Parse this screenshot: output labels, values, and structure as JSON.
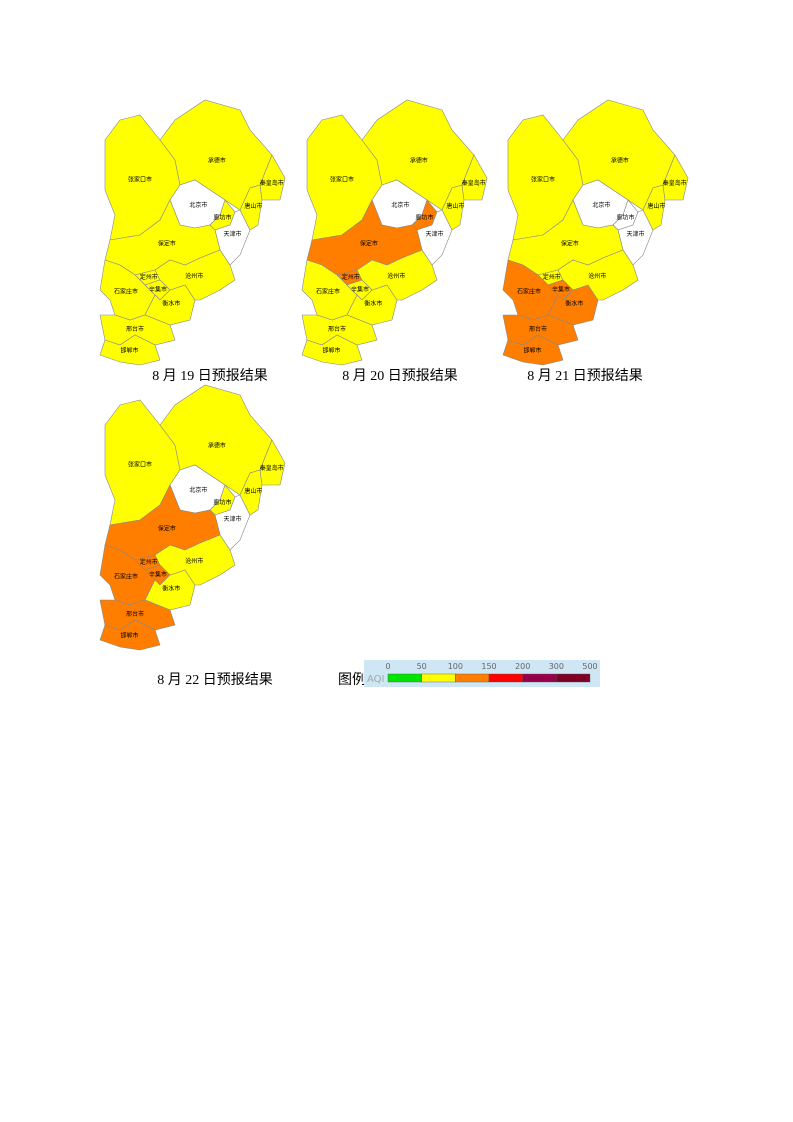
{
  "regions": [
    "张家口市",
    "承德市",
    "北京市",
    "廊坊市",
    "天津市",
    "唐山市",
    "秦皇岛市",
    "保定市",
    "定州市",
    "石家庄市",
    "辛集市",
    "衡水市",
    "沧州市",
    "邢台市",
    "邯郸市"
  ],
  "maps": [
    {
      "caption": "8 月 19 日预报结果",
      "fills": [
        "#ffff00",
        "#ffff00",
        "#ffffff",
        "#ffff00",
        "#ffffff",
        "#ffff00",
        "#ffff00",
        "#ffff00",
        "#ffff00",
        "#ffff00",
        "#ffff00",
        "#ffff00",
        "#ffff00",
        "#ffff00",
        "#ffff00"
      ]
    },
    {
      "caption": "8 月 20 日预报结果",
      "fills": [
        "#ffff00",
        "#ffff00",
        "#ffffff",
        "#ff7e00",
        "#ffffff",
        "#ffff00",
        "#ffff00",
        "#ff7e00",
        "#ff7e00",
        "#ffff00",
        "#ffff00",
        "#ffff00",
        "#ffff00",
        "#ffff00",
        "#ffff00"
      ]
    },
    {
      "caption": "8 月 21 日预报结果",
      "fills": [
        "#ffff00",
        "#ffff00",
        "#ffffff",
        "#ffffff",
        "#ffffff",
        "#ffff00",
        "#ffff00",
        "#ffff00",
        "#ffff00",
        "#ff7e00",
        "#ff7e00",
        "#ff7e00",
        "#ffff00",
        "#ff7e00",
        "#ff7e00"
      ]
    },
    {
      "caption": "8 月 22 日预报结果",
      "fills": [
        "#ffff00",
        "#ffff00",
        "#ffffff",
        "#ffff00",
        "#ffffff",
        "#ffff00",
        "#ffff00",
        "#ff7e00",
        "#ff7e00",
        "#ff7e00",
        "#ff7e00",
        "#ffff00",
        "#ffff00",
        "#ff7e00",
        "#ff7e00"
      ]
    }
  ],
  "legend": {
    "label": "图例",
    "scale_title": "AQI",
    "ticks": [
      0,
      50,
      100,
      150,
      200,
      300,
      500
    ],
    "colors": [
      "#00e400",
      "#ffff00",
      "#ff7e00",
      "#ff0000",
      "#99004c",
      "#7e0023"
    ]
  }
}
